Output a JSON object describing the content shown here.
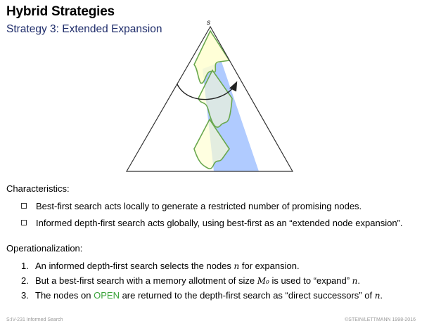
{
  "slide": {
    "title": "Hybrid Strategies",
    "subtitle": "Strategy 3: Extended Expansion"
  },
  "diagram": {
    "root_label": "s",
    "colors": {
      "triangle_stroke": "#333333",
      "region_fill": "#ffffe0",
      "region_stroke": "#6aa84f",
      "band_fill": "#6fa0ff",
      "arrow": "#222222"
    }
  },
  "characteristics": {
    "heading": "Characteristics:",
    "bullets": [
      "Best-first search acts locally to generate a restricted number of promising nodes.",
      "Informed depth-first search acts globally, using best-first as an “extended node expansion”."
    ]
  },
  "operationalization": {
    "heading": "Operationalization:",
    "items": [
      {
        "num": "1.",
        "pre": "An informed depth-first search selects the nodes ",
        "math": "n",
        "post": " for expansion."
      },
      {
        "num": "2.",
        "pre": "But a best-first search with a memory allotment of size ",
        "math": "M₀",
        "mid": " is used to “expand” ",
        "math2": "n",
        "post": "."
      },
      {
        "num": "3.",
        "pre": "The nodes on ",
        "highlight": "OPEN",
        "mid": " are returned to the depth-first search as “direct successors” of ",
        "math": "n",
        "post": "."
      }
    ]
  },
  "footer": {
    "left": "S:IV-231   Informed Search",
    "right": "©STEIN/LETTMANN 1998-2016"
  }
}
